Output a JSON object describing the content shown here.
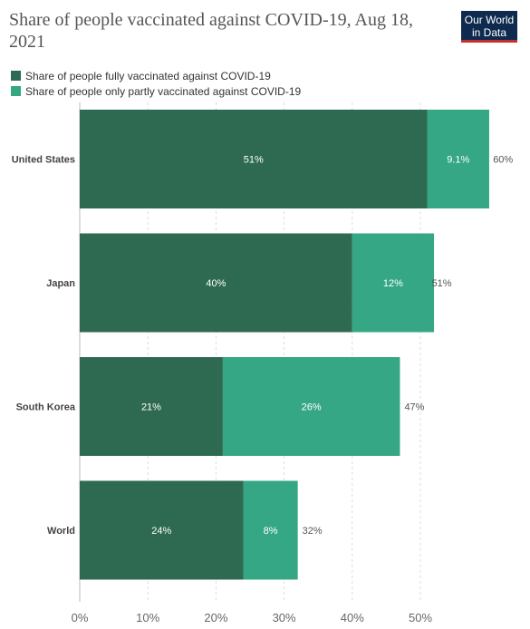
{
  "header": {
    "title": "Share of people vaccinated against COVID-19, Aug 18, 2021",
    "logo_line1": "Our World",
    "logo_line2": "in Data"
  },
  "colors": {
    "fully": "#2e6a52",
    "partly": "#35a784",
    "logo_bg": "#0e2a4f",
    "logo_accent": "#c4302b"
  },
  "chart_data": {
    "type": "bar",
    "orientation": "horizontal",
    "stacked": true,
    "title": "Share of people vaccinated against COVID-19, Aug 18, 2021",
    "categories": [
      "United States",
      "Japan",
      "South Korea",
      "World"
    ],
    "series": [
      {
        "name": "Share of people fully vaccinated against COVID-19",
        "values": [
          51,
          40,
          21,
          24
        ],
        "labels": [
          "51%",
          "40%",
          "21%",
          "24%"
        ]
      },
      {
        "name": "Share of people only partly vaccinated against COVID-19",
        "values": [
          9.1,
          12,
          26,
          8
        ],
        "labels": [
          "9.1%",
          "12%",
          "26%",
          "8%"
        ]
      }
    ],
    "totals": [
      60,
      51,
      47,
      32
    ],
    "total_labels": [
      "60%",
      "51%",
      "47%",
      "32%"
    ],
    "xlim": [
      0,
      60
    ],
    "x_ticks": [
      0,
      10,
      20,
      30,
      40,
      50
    ],
    "x_tick_labels": [
      "0%",
      "10%",
      "20%",
      "30%",
      "40%",
      "50%"
    ],
    "grid": true,
    "legend_position": "top-left"
  }
}
